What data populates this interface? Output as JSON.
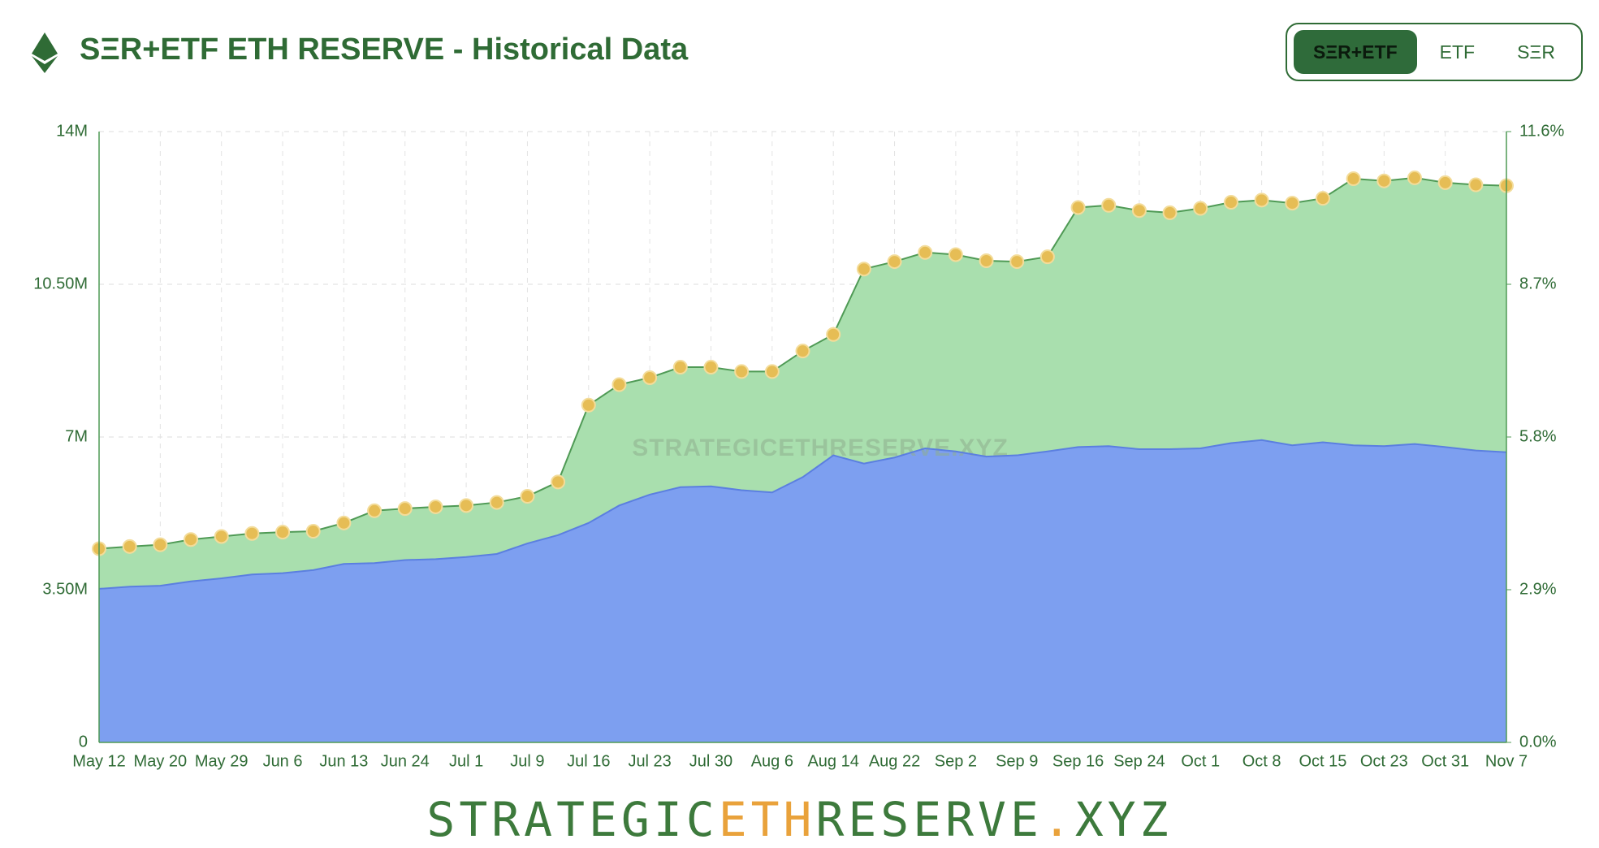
{
  "header": {
    "title": "SΞR+ETF ETH RESERVE - Historical Data"
  },
  "toggle": {
    "options": [
      "SΞR+ETF",
      "ETF",
      "SΞR"
    ]
  },
  "chart_data": {
    "type": "area",
    "stacked": true,
    "grid": true,
    "watermark": "STRATEGICETHRESERVE.XYZ",
    "categories": [
      "May 12",
      null,
      "May 20",
      null,
      "May 29",
      null,
      "Jun 6",
      null,
      "Jun 13",
      null,
      "Jun 24",
      null,
      "Jul 1",
      null,
      "Jul 9",
      null,
      "Jul 16",
      null,
      "Jul 23",
      null,
      "Jul 30",
      null,
      "Aug 6",
      null,
      "Aug 14",
      null,
      "Aug 22",
      null,
      "Sep 2",
      null,
      "Sep 9",
      null,
      "Sep 16",
      null,
      "Sep 24",
      null,
      "Oct 1",
      null,
      "Oct 8",
      null,
      "Oct 15",
      null,
      "Oct 23",
      null,
      "Oct 31",
      null,
      "Nov 7"
    ],
    "series": [
      {
        "color": "#7d9ff0",
        "line_color": "#5b7fe0",
        "values": [
          3520000,
          3570000,
          3590000,
          3690000,
          3760000,
          3850000,
          3880000,
          3950000,
          4090000,
          4110000,
          4180000,
          4200000,
          4250000,
          4320000,
          4560000,
          4750000,
          5030000,
          5430000,
          5680000,
          5850000,
          5870000,
          5780000,
          5730000,
          6080000,
          6580000,
          6390000,
          6530000,
          6740000,
          6670000,
          6550000,
          6580000,
          6670000,
          6770000,
          6790000,
          6720000,
          6720000,
          6740000,
          6860000,
          6930000,
          6810000,
          6880000,
          6810000,
          6790000,
          6840000,
          6770000,
          6690000,
          6650000
        ]
      },
      {
        "color": "#a9dfae",
        "line_color": "#4f9a55",
        "marker_color": "#e6bd55",
        "values": [
          920000,
          920000,
          940000,
          960000,
          960000,
          940000,
          940000,
          890000,
          940000,
          1200000,
          1180000,
          1200000,
          1180000,
          1180000,
          1080000,
          1220000,
          2700000,
          2770000,
          2680000,
          2750000,
          2730000,
          2720000,
          2770000,
          2890000,
          2770000,
          4460000,
          4490000,
          4490000,
          4510000,
          4490000,
          4440000,
          4460000,
          5490000,
          5520000,
          5470000,
          5420000,
          5500000,
          5520000,
          5500000,
          5550000,
          5590000,
          6110000,
          6080000,
          6100000,
          6060000,
          6090000,
          6110000
        ]
      }
    ],
    "ylim": [
      0,
      14000000
    ],
    "yticks": [
      0,
      {
        "value": 3500000,
        "label": "3.50M"
      },
      {
        "value": 7000000,
        "label": "7M"
      },
      {
        "value": 10500000,
        "label": "10.50M"
      },
      {
        "value": 14000000,
        "label": "14M"
      }
    ],
    "y2lim": [
      0,
      11.6
    ],
    "y2ticks": [
      {
        "value": 0,
        "label": "0.0%"
      },
      {
        "value": 2.9,
        "label": "2.9%"
      },
      {
        "value": 5.8,
        "label": "5.8%"
      },
      {
        "value": 8.7,
        "label": "8.7%"
      },
      {
        "value": 11.6,
        "label": "11.6%"
      }
    ]
  },
  "footer": {
    "parts": [
      "STRATEGIC",
      "ETH",
      "RESERVE",
      ".",
      "XYZ"
    ]
  }
}
